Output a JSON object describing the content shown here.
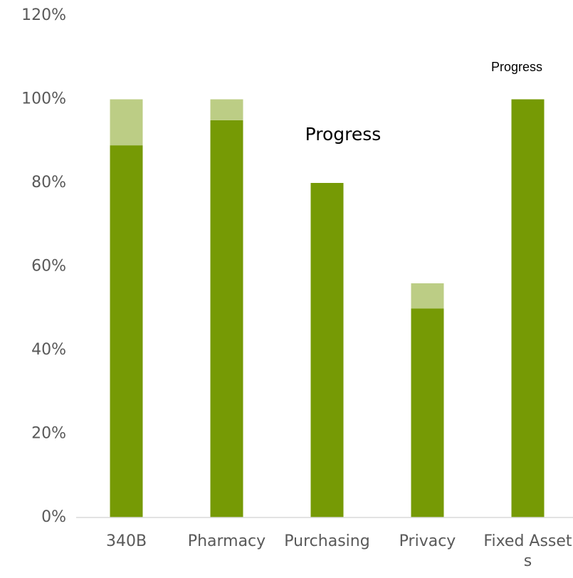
{
  "chart_data": {
    "type": "stacked_bar",
    "categories": [
      "340B",
      "Pharmacy",
      "Purchasing",
      "Privacy",
      "Fixed Assets"
    ],
    "series": [
      {
        "color": "#769a05",
        "values": [
          89,
          95,
          80,
          50,
          100
        ]
      },
      {
        "color": "#bccd85",
        "values": [
          11,
          5,
          0,
          6,
          0
        ]
      }
    ],
    "ylim": [
      0,
      120
    ],
    "yticks": [
      {
        "value": 0,
        "label": "0%"
      },
      {
        "value": 20,
        "label": "20%"
      },
      {
        "value": 40,
        "label": "40%"
      },
      {
        "value": 60,
        "label": "60%"
      },
      {
        "value": 80,
        "label": "80%"
      },
      {
        "value": 100,
        "label": "100%"
      },
      {
        "value": 120,
        "label": "120%"
      }
    ],
    "annotations": [
      "Progress",
      "Progress"
    ]
  }
}
